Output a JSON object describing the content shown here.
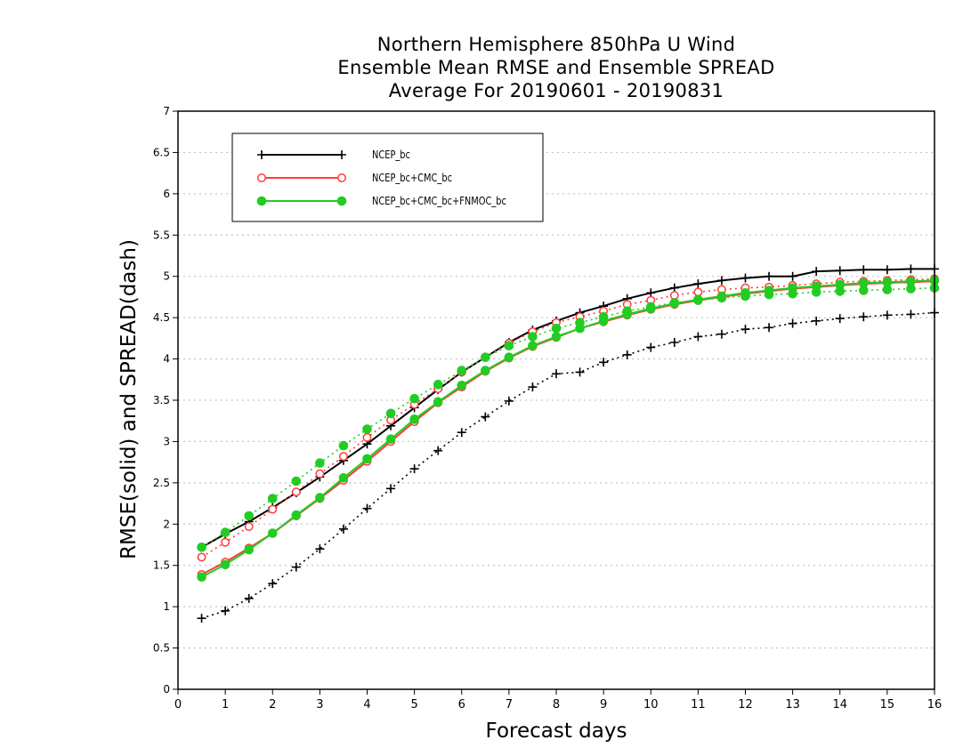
{
  "title_lines": [
    "Northern Hemisphere 850hPa U Wind",
    "Ensemble Mean RMSE and Ensemble SPREAD",
    "Average For 20190601 - 20190831"
  ],
  "chart_data": {
    "type": "line",
    "title": "Northern Hemisphere 850hPa U Wind Ensemble Mean RMSE and Ensemble SPREAD Average For 20190601 - 20190831",
    "xlabel": "Forecast days",
    "ylabel": "RMSE(solid) and SPREAD(dash)",
    "xlim": [
      0,
      16
    ],
    "ylim": [
      0,
      7
    ],
    "x_ticks": [
      "0",
      "1",
      "2",
      "3",
      "4",
      "5",
      "6",
      "7",
      "8",
      "9",
      "10",
      "11",
      "12",
      "13",
      "14",
      "15",
      "16"
    ],
    "y_ticks": [
      "0",
      "0.5",
      "1",
      "1.5",
      "2",
      "2.5",
      "3",
      "3.5",
      "4",
      "4.5",
      "5",
      "5.5",
      "6",
      "6.5",
      "7"
    ],
    "grid": true,
    "legend_position": "top-left",
    "x": [
      0.5,
      1,
      1.5,
      2,
      2.5,
      3,
      3.5,
      4,
      4.5,
      5,
      5.5,
      6,
      6.5,
      7,
      7.5,
      8,
      8.5,
      9,
      9.5,
      10,
      10.5,
      11,
      11.5,
      12,
      12.5,
      13,
      13.5,
      14,
      14.5,
      15,
      15.5,
      16
    ],
    "series": [
      {
        "name": "NCEP_bc",
        "color": "#000000",
        "marker": "plus",
        "rmse": [
          1.72,
          1.88,
          2.03,
          2.2,
          2.38,
          2.57,
          2.77,
          2.97,
          3.19,
          3.41,
          3.63,
          3.84,
          4.02,
          4.2,
          4.35,
          4.46,
          4.56,
          4.64,
          4.73,
          4.8,
          4.86,
          4.91,
          4.95,
          4.98,
          5.0,
          5.0,
          5.06,
          5.07,
          5.08,
          5.08,
          5.09,
          5.09
        ],
        "spread": [
          0.86,
          0.95,
          1.1,
          1.28,
          1.48,
          1.7,
          1.94,
          2.19,
          2.43,
          2.67,
          2.89,
          3.11,
          3.3,
          3.49,
          3.66,
          3.82,
          3.84,
          3.96,
          4.05,
          4.14,
          4.2,
          4.27,
          4.3,
          4.36,
          4.38,
          4.43,
          4.46,
          4.49,
          4.51,
          4.53,
          4.54,
          4.56
        ]
      },
      {
        "name": "NCEP_bc+CMC_bc",
        "color": "#ff3b3b",
        "marker": "open-circle",
        "rmse": [
          1.39,
          1.54,
          1.71,
          1.89,
          2.1,
          2.31,
          2.53,
          2.76,
          3.0,
          3.24,
          3.47,
          3.66,
          3.85,
          4.01,
          4.15,
          4.26,
          4.37,
          4.45,
          4.53,
          4.6,
          4.66,
          4.71,
          4.75,
          4.79,
          4.82,
          4.85,
          4.87,
          4.89,
          4.91,
          4.92,
          4.93,
          4.94
        ],
        "spread": [
          1.6,
          1.78,
          1.97,
          2.18,
          2.39,
          2.61,
          2.82,
          3.05,
          3.26,
          3.45,
          3.64,
          3.84,
          4.02,
          4.19,
          4.33,
          4.44,
          4.51,
          4.58,
          4.66,
          4.71,
          4.77,
          4.81,
          4.84,
          4.86,
          4.87,
          4.89,
          4.91,
          4.93,
          4.94,
          4.95,
          4.96,
          4.97
        ]
      },
      {
        "name": "NCEP_bc+CMC_bc+FNMOC_bc",
        "color": "#22cc22",
        "marker": "filled-circle",
        "rmse": [
          1.36,
          1.51,
          1.69,
          1.89,
          2.11,
          2.32,
          2.56,
          2.79,
          3.03,
          3.27,
          3.48,
          3.68,
          3.86,
          4.02,
          4.16,
          4.27,
          4.37,
          4.46,
          4.54,
          4.61,
          4.67,
          4.72,
          4.76,
          4.8,
          4.83,
          4.86,
          4.88,
          4.9,
          4.92,
          4.93,
          4.94,
          4.95
        ],
        "spread": [
          1.72,
          1.9,
          2.1,
          2.31,
          2.52,
          2.74,
          2.95,
          3.15,
          3.34,
          3.52,
          3.69,
          3.86,
          4.02,
          4.16,
          4.27,
          4.37,
          4.44,
          4.51,
          4.58,
          4.63,
          4.68,
          4.71,
          4.74,
          4.76,
          4.78,
          4.79,
          4.81,
          4.82,
          4.83,
          4.84,
          4.85,
          4.86
        ]
      }
    ]
  }
}
